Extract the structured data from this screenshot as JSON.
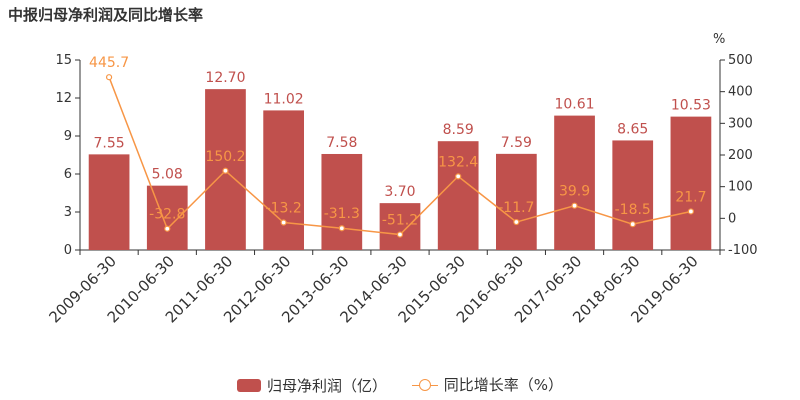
{
  "title": "中报归母净利润及同比增长率",
  "colors": {
    "bar": "#c0504d",
    "line": "#f79646",
    "axis": "#333333"
  },
  "legend": {
    "bar_label": "归母净利润（亿）",
    "line_label": "同比增长率（%）"
  },
  "chart_data": {
    "type": "bar+line",
    "title": "中报归母净利润及同比增长率",
    "categories": [
      "2009-06-30",
      "2010-06-30",
      "2011-06-30",
      "2012-06-30",
      "2013-06-30",
      "2014-06-30",
      "2015-06-30",
      "2016-06-30",
      "2017-06-30",
      "2018-06-30",
      "2019-06-30"
    ],
    "series": [
      {
        "name": "归母净利润（亿）",
        "type": "bar",
        "axis": "left",
        "values": [
          7.55,
          5.08,
          12.7,
          11.02,
          7.58,
          3.7,
          8.59,
          7.59,
          10.61,
          8.65,
          10.53
        ],
        "labels": [
          "7.55",
          "5.08",
          "12.70",
          "11.02",
          "7.58",
          "3.70",
          "8.59",
          "7.59",
          "10.61",
          "8.65",
          "10.53"
        ]
      },
      {
        "name": "同比增长率（%）",
        "type": "line",
        "axis": "right",
        "values": [
          445.7,
          -32.8,
          150.2,
          -13.2,
          -31.3,
          -51.2,
          132.4,
          -11.7,
          39.9,
          -18.5,
          21.7
        ],
        "labels": [
          "445.7",
          "-32.8",
          "150.2",
          "-13.2",
          "-31.3",
          "-51.2",
          "132.4",
          "-11.7",
          "39.9",
          "-18.5",
          "21.7"
        ]
      }
    ],
    "y_left": {
      "range": [
        0,
        15
      ],
      "ticks": [
        "0",
        "3",
        "6",
        "9",
        "12",
        "15"
      ]
    },
    "y_right": {
      "range": [
        -100,
        500
      ],
      "ticks": [
        "-100",
        "0",
        "100",
        "200",
        "300",
        "400",
        "500"
      ],
      "unit": "%"
    },
    "grid": false,
    "legend_position": "bottom"
  }
}
